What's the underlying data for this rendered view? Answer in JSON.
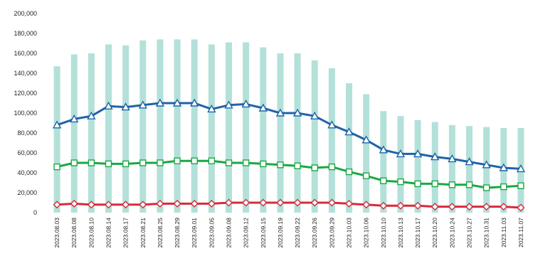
{
  "chart_data": {
    "type": "bar",
    "title": "",
    "xlabel": "",
    "ylabel": "",
    "ylim": [
      0,
      200000
    ],
    "y_ticks": [
      "0",
      "20,000",
      "40,000",
      "60,000",
      "80,000",
      "100,000",
      "120,000",
      "140,000",
      "160,000",
      "180,000",
      "200,000"
    ],
    "categories": [
      "2023.08.03",
      "2023.08.08",
      "2023.08.10",
      "2023.08.14",
      "2023.08.17",
      "2023.08.21",
      "2023.08.25",
      "2023.08.29",
      "2023.09.01",
      "2023.09.05",
      "2023.09.08",
      "2023.09.12",
      "2023.09.15",
      "2023.09.19",
      "2023.09.22",
      "2023.09.26",
      "2023.09.29",
      "2023.10.03",
      "2023.10.06",
      "2023.10.10",
      "2023.10.13",
      "2023.10.17",
      "2023.10.20",
      "2023.10.24",
      "2023.10.27",
      "2023.10.31",
      "2023.11.03",
      "2023.11.07"
    ],
    "grid": false,
    "legend": "none",
    "series": [
      {
        "type": "bar",
        "color": "#b3e1d9",
        "values": [
          147000,
          159000,
          160000,
          169000,
          168000,
          173000,
          174000,
          174000,
          174000,
          169000,
          171000,
          171000,
          166000,
          160000,
          160000,
          153000,
          145000,
          130000,
          119000,
          102000,
          97000,
          93000,
          91000,
          88000,
          87000,
          86000,
          85000,
          85000
        ]
      },
      {
        "type": "line",
        "color": "#1f63a8",
        "marker": "triangle",
        "values": [
          88000,
          94000,
          97000,
          107000,
          106000,
          108000,
          110000,
          110000,
          110000,
          104000,
          108000,
          109000,
          105000,
          100000,
          100000,
          97000,
          88000,
          81000,
          73000,
          63000,
          59000,
          59000,
          56000,
          54000,
          51000,
          48000,
          45000,
          44000
        ]
      },
      {
        "type": "line",
        "color": "#1aa844",
        "marker": "square",
        "values": [
          46000,
          50000,
          50000,
          49000,
          49000,
          50000,
          50000,
          52000,
          52000,
          52000,
          50000,
          50000,
          49000,
          48000,
          47000,
          45000,
          46000,
          41000,
          37000,
          32000,
          31000,
          29000,
          29000,
          28000,
          28000,
          25000,
          26000,
          27000
        ]
      },
      {
        "type": "line",
        "color": "#d62b3c",
        "marker": "diamond",
        "values": [
          8000,
          9000,
          8000,
          8000,
          8000,
          8000,
          9000,
          9000,
          9000,
          9000,
          10000,
          10000,
          10000,
          10000,
          10000,
          10000,
          10000,
          9000,
          8000,
          7000,
          7000,
          7000,
          6000,
          6000,
          6000,
          6000,
          6000,
          5000
        ]
      }
    ]
  }
}
